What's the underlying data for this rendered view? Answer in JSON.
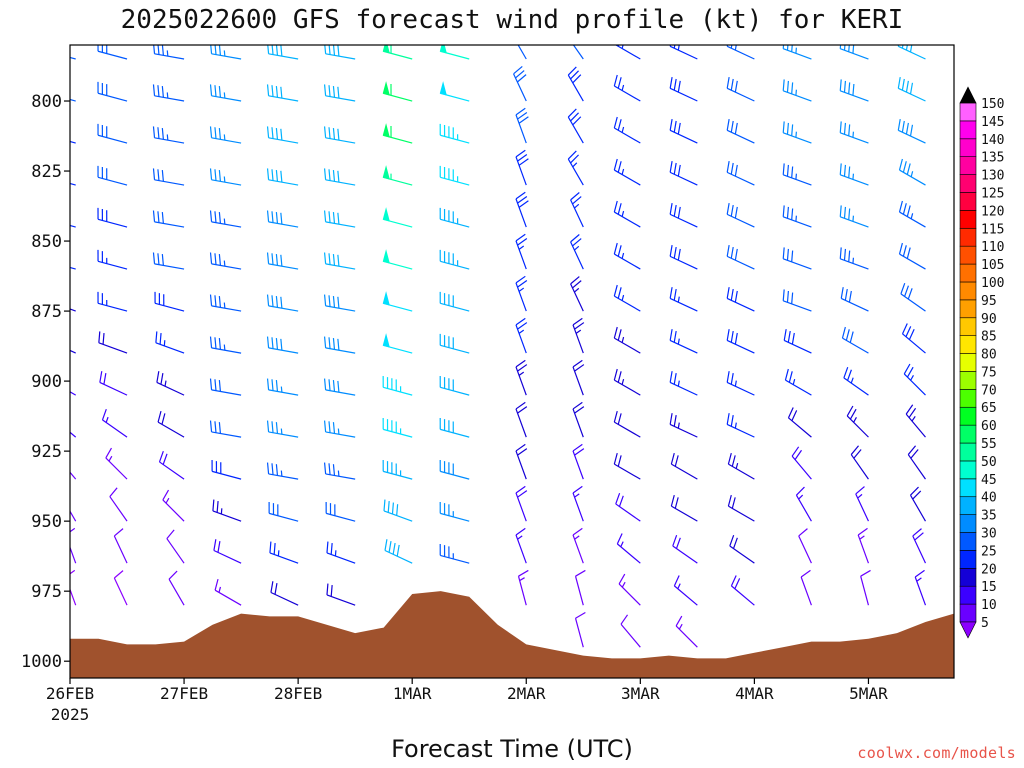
{
  "chart_data": {
    "type": "wind-barb time-height profile",
    "title": "2025022600 GFS forecast wind profile (kt) for KERI",
    "xlabel": "Forecast Time (UTC)",
    "x_ticks": [
      "26FEB",
      "27FEB",
      "28FEB",
      "1MAR",
      "2MAR",
      "3MAR",
      "4MAR",
      "5MAR"
    ],
    "x_year_label": "2025",
    "x_range_days": [
      0,
      7.75
    ],
    "y_ticks": [
      800,
      825,
      850,
      875,
      900,
      925,
      950,
      975,
      1000
    ],
    "y_range_hpa": [
      780,
      1006
    ],
    "levels_hpa": [
      785,
      800,
      815,
      830,
      845,
      860,
      875,
      890,
      905,
      920,
      935,
      950,
      965,
      980,
      995
    ],
    "colorbar": {
      "labels": [
        5,
        10,
        15,
        20,
        25,
        30,
        35,
        40,
        45,
        50,
        55,
        60,
        65,
        70,
        75,
        80,
        85,
        90,
        95,
        100,
        105,
        110,
        115,
        120,
        125,
        130,
        135,
        140,
        145,
        150
      ],
      "colors": [
        "#8b00ff",
        "#6a00ff",
        "#3b00ff",
        "#1400d6",
        "#0026ff",
        "#0059ff",
        "#008cff",
        "#00b2ff",
        "#00e0ff",
        "#00ffd0",
        "#00ff9c",
        "#00ff66",
        "#00ff22",
        "#4cff00",
        "#9cff00",
        "#e6ff00",
        "#ffe600",
        "#ffc800",
        "#ffa000",
        "#ff8a00",
        "#ff7000",
        "#ff5000",
        "#ff2a00",
        "#ff0000",
        "#ff0040",
        "#ff0070",
        "#ff00a0",
        "#ff00cc",
        "#ff00ee",
        "#ff60ff"
      ]
    },
    "terrain": {
      "color": "#a0522d",
      "times_days": [
        0,
        0.25,
        0.5,
        0.75,
        1.0,
        1.25,
        1.5,
        1.75,
        2.0,
        2.25,
        2.5,
        2.75,
        3.0,
        3.25,
        3.5,
        3.75,
        4.0,
        4.25,
        4.5,
        4.75,
        5.0,
        5.25,
        5.5,
        5.75,
        6.0,
        6.25,
        6.5,
        6.75,
        7.0,
        7.25,
        7.5,
        7.75
      ],
      "surface_pressure_hpa": [
        992,
        992,
        994,
        994,
        993,
        987,
        983,
        984,
        984,
        987,
        990,
        988,
        976,
        975,
        977,
        987,
        994,
        996,
        998,
        999,
        999,
        998,
        999,
        999,
        997,
        995,
        993,
        993,
        992,
        990,
        986,
        983
      ]
    },
    "columns": [
      {
        "t": 0.05,
        "dir": [
          285,
          285,
          285,
          285,
          285,
          285,
          290,
          295,
          300,
          310,
          320,
          330,
          340,
          340,
          340
        ],
        "spd": [
          30,
          30,
          29,
          28,
          27,
          25,
          22,
          20,
          18,
          16,
          14,
          12,
          10,
          9,
          8
        ]
      },
      {
        "t": 0.5,
        "dir": [
          285,
          285,
          285,
          285,
          285,
          285,
          285,
          290,
          295,
          305,
          315,
          325,
          335,
          335,
          335
        ],
        "spd": [
          32,
          32,
          31,
          30,
          29,
          27,
          25,
          22,
          19,
          16,
          14,
          12,
          10,
          9,
          8
        ]
      },
      {
        "t": 1.0,
        "dir": [
          280,
          280,
          280,
          280,
          280,
          280,
          285,
          290,
          295,
          300,
          305,
          315,
          325,
          330,
          330
        ],
        "spd": [
          34,
          34,
          33,
          32,
          31,
          30,
          28,
          26,
          24,
          22,
          18,
          14,
          12,
          10,
          10
        ]
      },
      {
        "t": 1.5,
        "dir": [
          280,
          280,
          280,
          280,
          280,
          280,
          280,
          280,
          280,
          280,
          285,
          290,
          295,
          300,
          300
        ],
        "spd": [
          36,
          36,
          35,
          35,
          34,
          34,
          34,
          33,
          32,
          30,
          28,
          24,
          18,
          14,
          12
        ]
      },
      {
        "t": 2.0,
        "dir": [
          280,
          280,
          280,
          280,
          280,
          280,
          280,
          280,
          280,
          280,
          280,
          285,
          290,
          295,
          295
        ],
        "spd": [
          40,
          40,
          40,
          40,
          39,
          39,
          38,
          38,
          37,
          35,
          33,
          30,
          25,
          20,
          16
        ]
      },
      {
        "t": 2.5,
        "dir": [
          280,
          280,
          280,
          280,
          280,
          280,
          280,
          280,
          280,
          280,
          280,
          285,
          290,
          290,
          290
        ],
        "spd": [
          40,
          41,
          41,
          41,
          40,
          40,
          39,
          39,
          38,
          36,
          34,
          30,
          26,
          22,
          18
        ]
      },
      {
        "t": 3.0,
        "dir": [
          285,
          285,
          285,
          285,
          285,
          285,
          285,
          285,
          285,
          285,
          285,
          290,
          295,
          300,
          300
        ],
        "spd": [
          58,
          62,
          60,
          55,
          52,
          50,
          48,
          48,
          47,
          46,
          44,
          42,
          40,
          38,
          35
        ]
      },
      {
        "t": 3.5,
        "dir": [
          285,
          285,
          285,
          285,
          285,
          285,
          285,
          285,
          285,
          285,
          285,
          285,
          285,
          290,
          290
        ],
        "spd": [
          50,
          48,
          46,
          45,
          44,
          43,
          42,
          42,
          41,
          40,
          38,
          36,
          34,
          30,
          26
        ]
      },
      {
        "t": 4.0,
        "dir": [
          330,
          335,
          340,
          340,
          340,
          340,
          340,
          340,
          340,
          340,
          340,
          340,
          340,
          345,
          345
        ],
        "spd": [
          32,
          31,
          30,
          29,
          28,
          27,
          26,
          25,
          24,
          22,
          20,
          18,
          16,
          14,
          12
        ]
      },
      {
        "t": 4.5,
        "dir": [
          325,
          330,
          330,
          330,
          335,
          335,
          335,
          340,
          340,
          340,
          340,
          340,
          340,
          345,
          345
        ],
        "spd": [
          30,
          29,
          28,
          27,
          26,
          25,
          24,
          23,
          22,
          20,
          18,
          16,
          14,
          12,
          10
        ]
      },
      {
        "t": 5.0,
        "dir": [
          300,
          300,
          300,
          300,
          300,
          300,
          300,
          300,
          300,
          300,
          300,
          305,
          310,
          315,
          320
        ],
        "spd": [
          26,
          26,
          26,
          26,
          26,
          26,
          25,
          24,
          23,
          22,
          20,
          18,
          16,
          14,
          12
        ]
      },
      {
        "t": 5.5,
        "dir": [
          295,
          295,
          295,
          295,
          295,
          295,
          295,
          295,
          295,
          295,
          300,
          300,
          305,
          310,
          315
        ],
        "spd": [
          28,
          28,
          28,
          28,
          28,
          28,
          27,
          26,
          25,
          24,
          22,
          20,
          18,
          16,
          14
        ]
      },
      {
        "t": 6.0,
        "dir": [
          295,
          295,
          295,
          295,
          295,
          295,
          295,
          295,
          295,
          295,
          300,
          300,
          305,
          310,
          315
        ],
        "spd": [
          32,
          32,
          32,
          31,
          31,
          30,
          29,
          28,
          27,
          26,
          24,
          22,
          20,
          18,
          16
        ]
      },
      {
        "t": 6.5,
        "dir": [
          290,
          290,
          290,
          290,
          290,
          290,
          290,
          295,
          300,
          310,
          320,
          330,
          335,
          340,
          340
        ],
        "spd": [
          36,
          36,
          35,
          34,
          33,
          32,
          30,
          28,
          25,
          22,
          18,
          15,
          12,
          10,
          9
        ]
      },
      {
        "t": 7.0,
        "dir": [
          290,
          290,
          290,
          290,
          290,
          290,
          295,
          300,
          305,
          315,
          325,
          335,
          340,
          345,
          345
        ],
        "spd": [
          38,
          38,
          37,
          36,
          35,
          34,
          32,
          30,
          27,
          24,
          20,
          17,
          14,
          11,
          10
        ]
      },
      {
        "t": 7.5,
        "dir": [
          295,
          295,
          295,
          300,
          300,
          300,
          305,
          310,
          315,
          320,
          325,
          330,
          335,
          340,
          340
        ],
        "spd": [
          42,
          40,
          38,
          36,
          34,
          32,
          30,
          28,
          26,
          24,
          22,
          20,
          18,
          16,
          14
        ]
      }
    ]
  },
  "footer": {
    "credit": "coolwx.com/models"
  }
}
